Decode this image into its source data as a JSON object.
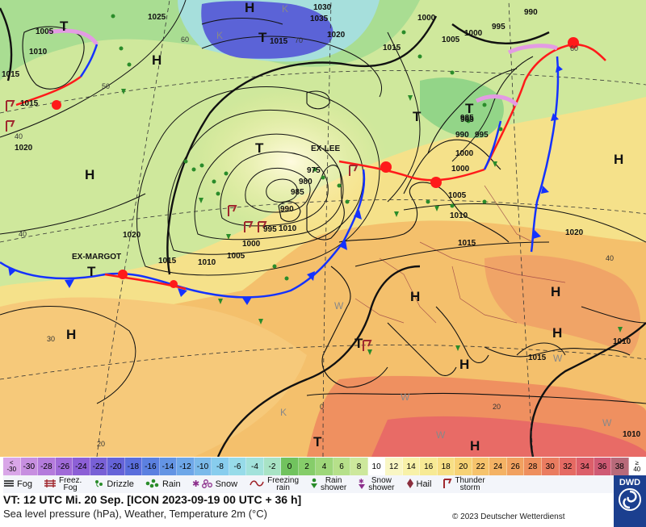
{
  "map": {
    "colors": {
      "sea_yellow": "#f6f0b0",
      "land_orange": "#f6c270",
      "warm": "#f29b64",
      "hot": "#e96c66",
      "green": "#9ed59a",
      "cyan": "#a9dfe0",
      "blue": "#5a5fd8",
      "cold_front": "#1432ff",
      "warm_front": "#ff1a1a",
      "occlusion": "#e39be3"
    },
    "pressure_labels": [
      "1025",
      "1005",
      "1010",
      "1015",
      "1030",
      "1035",
      "1015",
      "1020",
      "1005",
      "1000",
      "995",
      "1000",
      "990",
      "1015",
      "1015",
      "1020",
      "1000",
      "975",
      "985",
      "980",
      "985",
      "1000",
      "995",
      "990",
      "995",
      "1005",
      "990",
      "985",
      "1010",
      "1010",
      "1015",
      "1015",
      "1010",
      "1005",
      "1000",
      "1020",
      "1015",
      "1010",
      "1015",
      "1010"
    ],
    "temperature_labels": [
      "60",
      "70",
      "50",
      "40",
      "40",
      "30",
      "20",
      "0",
      "20",
      "60",
      "40"
    ],
    "high_labels": [
      "H",
      "H",
      "H",
      "H",
      "H",
      "H",
      "H",
      "H",
      "H",
      "H",
      "H"
    ],
    "low_labels": [
      "T",
      "T",
      "T",
      "T",
      "T",
      "T",
      "T",
      "T"
    ],
    "cold_labels": [
      "K",
      "K",
      "K"
    ],
    "warm_labels": [
      "W",
      "W",
      "W",
      "W",
      "W"
    ],
    "storm_names": [
      "EX-LEE",
      "EX-MARGOT"
    ]
  },
  "legend": {
    "scale": [
      {
        "label": "<\n-30",
        "color": "#d9a6e8"
      },
      {
        "label": "-30",
        "color": "#c78fe0"
      },
      {
        "label": "-28",
        "color": "#b47bdc"
      },
      {
        "label": "-26",
        "color": "#a06ad8"
      },
      {
        "label": "-24",
        "color": "#8c5fd6"
      },
      {
        "label": "-22",
        "color": "#7860d6"
      },
      {
        "label": "-20",
        "color": "#6563d8"
      },
      {
        "label": "-18",
        "color": "#5a6edc"
      },
      {
        "label": "-16",
        "color": "#5b80e0"
      },
      {
        "label": "-14",
        "color": "#6394e4"
      },
      {
        "label": "-12",
        "color": "#6ea7e8"
      },
      {
        "label": "-10",
        "color": "#7bbaea"
      },
      {
        "label": "-8",
        "color": "#88cdee"
      },
      {
        "label": "-6",
        "color": "#97dbe9"
      },
      {
        "label": "-4",
        "color": "#a3e2db"
      },
      {
        "label": "-2",
        "color": "#a8e3c5"
      },
      {
        "label": "0",
        "color": "#71c35e"
      },
      {
        "label": "2",
        "color": "#86cd6a"
      },
      {
        "label": "4",
        "color": "#9ed77a"
      },
      {
        "label": "6",
        "color": "#b6e08a"
      },
      {
        "label": "8",
        "color": "#cde89c"
      },
      {
        "label": "10",
        "color": "#ffffff"
      },
      {
        "label": "12",
        "color": "#f9f6c4"
      },
      {
        "label": "14",
        "color": "#f8f1a8"
      },
      {
        "label": "16",
        "color": "#f7ea95"
      },
      {
        "label": "18",
        "color": "#f7df85"
      },
      {
        "label": "20",
        "color": "#f7d275"
      },
      {
        "label": "22",
        "color": "#f6c36c"
      },
      {
        "label": "24",
        "color": "#f4b264"
      },
      {
        "label": "26",
        "color": "#f1a160"
      },
      {
        "label": "28",
        "color": "#ee8f5e"
      },
      {
        "label": "30",
        "color": "#ea7c60"
      },
      {
        "label": "32",
        "color": "#e56a63"
      },
      {
        "label": "34",
        "color": "#dc5f6a"
      },
      {
        "label": "36",
        "color": "#cf5a74"
      },
      {
        "label": "38",
        "color": "#b86a7a"
      },
      {
        "label": "≥\n40",
        "color": "#ffffff"
      }
    ],
    "weather": [
      {
        "icon": "fog-icon",
        "label": "Fog"
      },
      {
        "icon": "freezing-fog-icon",
        "label": "Freez.\nFog"
      },
      {
        "icon": "drizzle-icon",
        "label": "Drizzle"
      },
      {
        "icon": "rain-icon",
        "label": "Rain"
      },
      {
        "icon": "snow-icon",
        "label": "Snow"
      },
      {
        "icon": "freezing-rain-icon",
        "label": "Freezing\nrain"
      },
      {
        "icon": "rain-shower-icon",
        "label": "Rain\nshower"
      },
      {
        "icon": "snow-shower-icon",
        "label": "Snow\nshower"
      },
      {
        "icon": "hail-icon",
        "label": "Hail"
      },
      {
        "icon": "thunderstorm-icon",
        "label": "Thunder\nstorm"
      }
    ]
  },
  "footer": {
    "valid_time": "VT: 12 UTC Mi.  20 Sep. [ICON 2023-09-19  00 UTC + 36 h]",
    "subtitle": "Sea level pressure (hPa), Weather, Temperature 2m (°C)",
    "copyright": "© 2023 Deutscher Wetterdienst",
    "logo_text": "DWD"
  }
}
